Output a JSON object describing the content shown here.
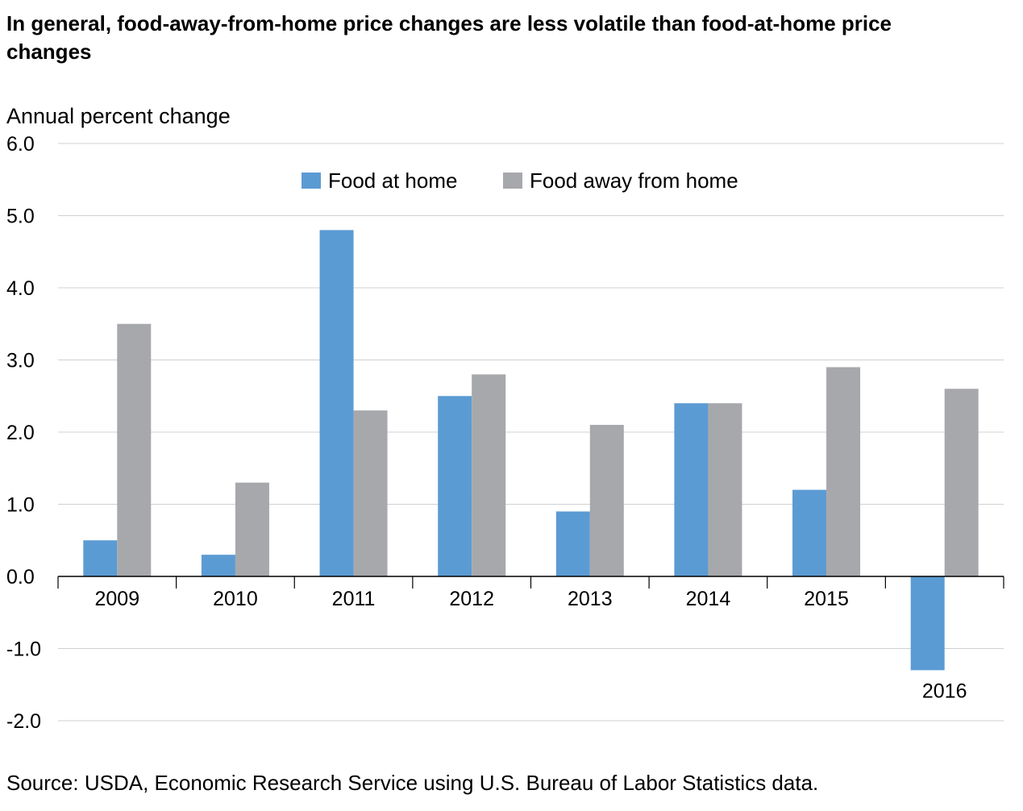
{
  "chart_data": {
    "type": "bar",
    "title": "In general, food-away-from-home price changes are less volatile than food-at-home price changes",
    "ylabel": "Annual percent change",
    "xlabel": "",
    "ylim": [
      -2.0,
      6.0
    ],
    "yticks": [
      "6.0",
      "5.0",
      "4.0",
      "3.0",
      "2.0",
      "1.0",
      "0.0",
      "-1.0",
      "-2.0"
    ],
    "categories": [
      "2009",
      "2010",
      "2011",
      "2012",
      "2013",
      "2014",
      "2015",
      "2016"
    ],
    "series": [
      {
        "name": "Food at home",
        "color": "#5b9bd3",
        "values": [
          0.5,
          0.3,
          4.8,
          2.5,
          0.9,
          2.4,
          1.2,
          -1.3
        ]
      },
      {
        "name": "Food away from home",
        "color": "#a7a8ab",
        "values": [
          3.5,
          1.3,
          2.3,
          2.8,
          2.1,
          2.4,
          2.9,
          2.6
        ]
      }
    ],
    "grid": true,
    "legend": "top-center",
    "source": "Source: USDA, Economic Research Service using U.S. Bureau of Labor Statistics data."
  }
}
